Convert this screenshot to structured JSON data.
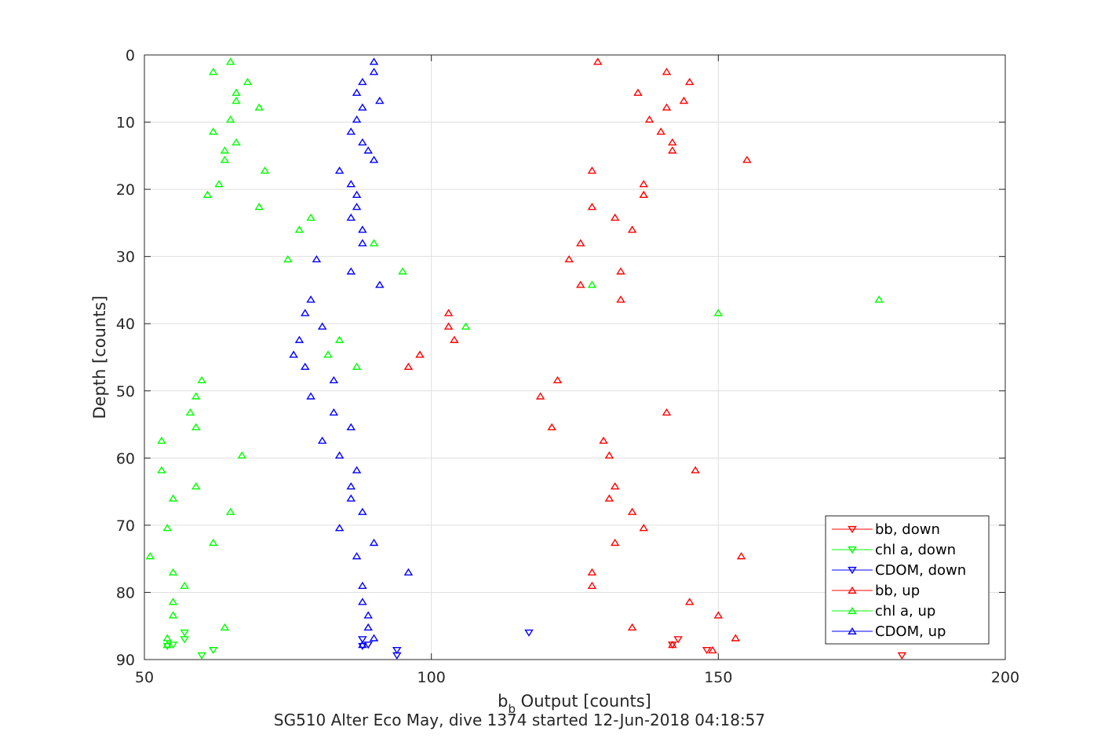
{
  "chart_data": {
    "type": "scatter",
    "title": "SG510 Alter Eco May, dive 1374 started 12-Jun-2018 04:18:57",
    "xlabel_main": "b",
    "xlabel_sub": "b",
    "xlabel_rest": " Output [counts]",
    "ylabel": "Depth [counts]",
    "xlim": [
      50,
      200
    ],
    "ylim": [
      0,
      90
    ],
    "y_reversed": true,
    "xticks": [
      "50",
      "100",
      "150",
      "200"
    ],
    "yticks": [
      "0",
      "10",
      "20",
      "30",
      "40",
      "50",
      "60",
      "70",
      "80",
      "90"
    ],
    "grid": true,
    "legend_position": "bottom-right",
    "series": [
      {
        "name": "bb, down",
        "color": "#ff0000",
        "marker": "triangle-down",
        "points": [
          [
            143,
            87
          ],
          [
            142,
            87.8
          ],
          [
            148,
            88.6
          ],
          [
            182,
            89.4
          ]
        ]
      },
      {
        "name": "chl a, down",
        "color": "#00ff00",
        "marker": "triangle-down",
        "points": [
          [
            57,
            86
          ],
          [
            57,
            87
          ],
          [
            55,
            87.8
          ],
          [
            54,
            88
          ],
          [
            62,
            88.6
          ],
          [
            60,
            89.4
          ]
        ]
      },
      {
        "name": "CDOM, down",
        "color": "#0000ff",
        "marker": "triangle-down",
        "points": [
          [
            117,
            86
          ],
          [
            88,
            87
          ],
          [
            89,
            87.8
          ],
          [
            88,
            88
          ],
          [
            94,
            88.6
          ],
          [
            94,
            89.4
          ]
        ]
      },
      {
        "name": "bb, up",
        "color": "#ff0000",
        "marker": "triangle-up",
        "points": [
          [
            129,
            1
          ],
          [
            141,
            2.5
          ],
          [
            145,
            4
          ],
          [
            136,
            5.6
          ],
          [
            144,
            6.8
          ],
          [
            141,
            7.8
          ],
          [
            138,
            9.6
          ],
          [
            140,
            11.4
          ],
          [
            142,
            13
          ],
          [
            142,
            14.2
          ],
          [
            155,
            15.6
          ],
          [
            128,
            17.2
          ],
          [
            137,
            19.2
          ],
          [
            137,
            20.8
          ],
          [
            128,
            22.6
          ],
          [
            132,
            24.2
          ],
          [
            135,
            26
          ],
          [
            126,
            28
          ],
          [
            124,
            30.4
          ],
          [
            133,
            32.2
          ],
          [
            126,
            34.2
          ],
          [
            133,
            36.4
          ],
          [
            103,
            38.4
          ],
          [
            103,
            40.4
          ],
          [
            104,
            42.4
          ],
          [
            98,
            44.6
          ],
          [
            96,
            46.4
          ],
          [
            122,
            48.4
          ],
          [
            119,
            50.8
          ],
          [
            141,
            53.2
          ],
          [
            121,
            55.4
          ],
          [
            130,
            57.4
          ],
          [
            131,
            59.6
          ],
          [
            146,
            61.8
          ],
          [
            132,
            64.2
          ],
          [
            131,
            66
          ],
          [
            135,
            68
          ],
          [
            137,
            70.4
          ],
          [
            132,
            72.6
          ],
          [
            154,
            74.6
          ],
          [
            128,
            77
          ],
          [
            128,
            79
          ],
          [
            145,
            81.4
          ],
          [
            150,
            83.4
          ],
          [
            135,
            85.2
          ],
          [
            153,
            86.8
          ],
          [
            142,
            87.8
          ],
          [
            149,
            88.6
          ]
        ]
      },
      {
        "name": "chl a, up",
        "color": "#00ff00",
        "marker": "triangle-up",
        "points": [
          [
            65,
            1
          ],
          [
            62,
            2.5
          ],
          [
            68,
            4
          ],
          [
            66,
            5.6
          ],
          [
            66,
            6.8
          ],
          [
            70,
            7.8
          ],
          [
            65,
            9.6
          ],
          [
            62,
            11.4
          ],
          [
            66,
            13
          ],
          [
            64,
            14.2
          ],
          [
            64,
            15.6
          ],
          [
            71,
            17.2
          ],
          [
            63,
            19.2
          ],
          [
            61,
            20.8
          ],
          [
            70,
            22.6
          ],
          [
            79,
            24.2
          ],
          [
            77,
            26
          ],
          [
            90,
            28
          ],
          [
            75,
            30.4
          ],
          [
            95,
            32.2
          ],
          [
            128,
            34.2
          ],
          [
            178,
            36.4
          ],
          [
            150,
            38.4
          ],
          [
            106,
            40.4
          ],
          [
            84,
            42.4
          ],
          [
            82,
            44.6
          ],
          [
            87,
            46.4
          ],
          [
            60,
            48.4
          ],
          [
            59,
            50.8
          ],
          [
            58,
            53.2
          ],
          [
            59,
            55.4
          ],
          [
            53,
            57.4
          ],
          [
            67,
            59.6
          ],
          [
            53,
            61.8
          ],
          [
            59,
            64.2
          ],
          [
            55,
            66
          ],
          [
            65,
            68
          ],
          [
            54,
            70.4
          ],
          [
            62,
            72.6
          ],
          [
            51,
            74.6
          ],
          [
            55,
            77
          ],
          [
            57,
            79
          ],
          [
            55,
            81.4
          ],
          [
            55,
            83.4
          ],
          [
            64,
            85.2
          ],
          [
            54,
            86.8
          ],
          [
            54,
            87.8
          ]
        ]
      },
      {
        "name": "CDOM, up",
        "color": "#0000ff",
        "marker": "triangle-up",
        "points": [
          [
            90,
            1
          ],
          [
            90,
            2.5
          ],
          [
            88,
            4
          ],
          [
            87,
            5.6
          ],
          [
            91,
            6.8
          ],
          [
            88,
            7.8
          ],
          [
            87,
            9.6
          ],
          [
            86,
            11.4
          ],
          [
            88,
            13
          ],
          [
            89,
            14.2
          ],
          [
            90,
            15.6
          ],
          [
            84,
            17.2
          ],
          [
            86,
            19.2
          ],
          [
            87,
            20.8
          ],
          [
            87,
            22.6
          ],
          [
            86,
            24.2
          ],
          [
            88,
            26
          ],
          [
            88,
            28
          ],
          [
            80,
            30.4
          ],
          [
            86,
            32.2
          ],
          [
            91,
            34.2
          ],
          [
            79,
            36.4
          ],
          [
            78,
            38.4
          ],
          [
            81,
            40.4
          ],
          [
            77,
            42.4
          ],
          [
            76,
            44.6
          ],
          [
            78,
            46.4
          ],
          [
            83,
            48.4
          ],
          [
            79,
            50.8
          ],
          [
            83,
            53.2
          ],
          [
            86,
            55.4
          ],
          [
            81,
            57.4
          ],
          [
            84,
            59.6
          ],
          [
            87,
            61.8
          ],
          [
            86,
            64.2
          ],
          [
            86,
            66
          ],
          [
            88,
            68
          ],
          [
            84,
            70.4
          ],
          [
            90,
            72.6
          ],
          [
            87,
            74.6
          ],
          [
            96,
            77
          ],
          [
            88,
            79
          ],
          [
            88,
            81.4
          ],
          [
            89,
            83.4
          ],
          [
            89,
            85.2
          ],
          [
            90,
            86.8
          ],
          [
            88,
            87.8
          ]
        ]
      }
    ]
  }
}
